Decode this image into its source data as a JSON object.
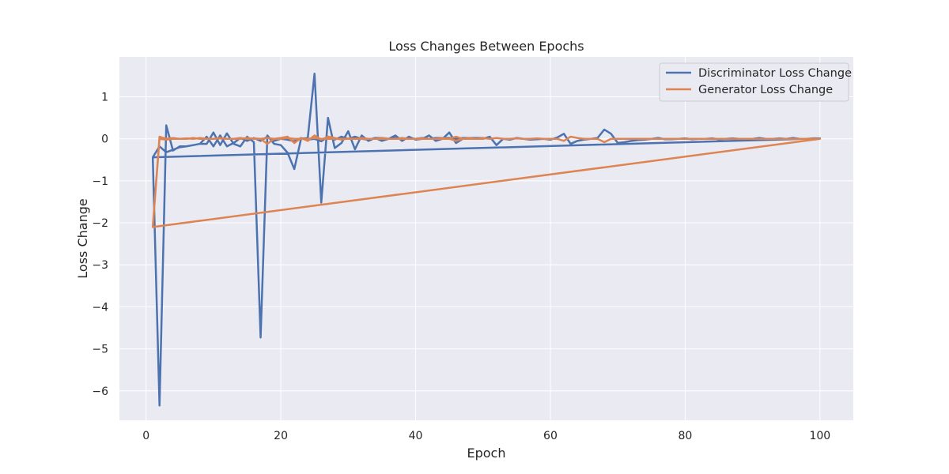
{
  "chart_data": {
    "type": "line",
    "title": "Loss Changes Between Epochs",
    "xlabel": "Epoch",
    "ylabel": "Loss Change",
    "xlim": [
      -3.95,
      104.95
    ],
    "ylim": [
      -6.7,
      1.95
    ],
    "xticks": [
      0,
      20,
      40,
      60,
      80,
      100
    ],
    "yticks": [
      -6,
      -5,
      -4,
      -3,
      -2,
      -1,
      0,
      1
    ],
    "grid": true,
    "legend": "top-right",
    "colors": {
      "background": "#eaeaf2",
      "grid": "#ffffff"
    },
    "series": [
      {
        "name": "Discriminator Loss Change",
        "color": "#4c72b0",
        "x": [
          1,
          2,
          3,
          4,
          5,
          6,
          7,
          8,
          9,
          10,
          11,
          12,
          13,
          14,
          15,
          16,
          17,
          18,
          19,
          20,
          21,
          22,
          23,
          24,
          25,
          26,
          27,
          28,
          29,
          30,
          31,
          32,
          33,
          34,
          35,
          36,
          37,
          38,
          39,
          40,
          41,
          42,
          43,
          44,
          45,
          46,
          47,
          48,
          49,
          50,
          51,
          52,
          53,
          54,
          55,
          56,
          57,
          58,
          59,
          60,
          61,
          62,
          63,
          64,
          65,
          66,
          67,
          68,
          69,
          70,
          71,
          72,
          73,
          74,
          75,
          76,
          77,
          78,
          79,
          80,
          81,
          82,
          83,
          84,
          85,
          86,
          87,
          88,
          89,
          90,
          91,
          92,
          93,
          94,
          95,
          96,
          97,
          98,
          99,
          100,
          1,
          2,
          3,
          4,
          5,
          6,
          7,
          8,
          9,
          10,
          11,
          12,
          13,
          14,
          15,
          16,
          17,
          18,
          19,
          20,
          21,
          22,
          23,
          24,
          25,
          26,
          27,
          28,
          29,
          30,
          31,
          32,
          33,
          34,
          35,
          36,
          37,
          38,
          39,
          40,
          41,
          42,
          43,
          44,
          45,
          46,
          47,
          48,
          49,
          50
        ],
        "y": [
          -0.44,
          -6.35,
          0.32,
          -0.28,
          -0.18,
          -0.18,
          -0.15,
          -0.12,
          -0.12,
          0.15,
          -0.15,
          0.13,
          -0.12,
          -0.18,
          0.05,
          -0.08,
          -4.73,
          0.08,
          -0.12,
          -0.15,
          -0.33,
          -0.72,
          0.0,
          0.02,
          1.55,
          -1.52,
          0.5,
          -0.22,
          -0.1,
          0.18,
          -0.25,
          0.08,
          -0.05,
          0.02,
          -0.05,
          0.0,
          0.08,
          -0.05,
          0.05,
          -0.02,
          0.0,
          0.08,
          -0.05,
          0.0,
          0.15,
          -0.1,
          0.0,
          0.0,
          0.02,
          0.0,
          0.05,
          -0.15,
          0.0,
          -0.02,
          0.02,
          0.0,
          -0.02,
          -0.01,
          0.0,
          -0.02,
          0.03,
          0.12,
          -0.12,
          -0.05,
          -0.02,
          0.0,
          0.02,
          0.22,
          0.12,
          -0.1,
          -0.08,
          -0.05,
          -0.03,
          -0.02,
          0.0,
          0.02,
          -0.01,
          -0.01,
          0.0,
          0.01,
          -0.01,
          0.0,
          0.0,
          0.01,
          -0.01,
          0.0,
          0.01,
          0.0,
          0.0,
          0.0,
          0.02,
          0.0,
          0.0,
          0.01,
          0.0,
          0.02,
          0.0,
          0.0,
          0.01,
          0.01,
          -0.44,
          -0.18,
          -0.32,
          -0.26,
          -0.2,
          -0.18,
          -0.15,
          -0.12,
          0.05,
          -0.18,
          0.08,
          -0.18,
          -0.1,
          0.02,
          -0.05,
          0.02,
          -0.05,
          0.05,
          -0.05,
          0.0,
          -0.02,
          -0.06,
          0.02,
          -0.02,
          0.0,
          -0.06,
          0.05,
          -0.02,
          0.05,
          0.0,
          0.05,
          0.0,
          -0.02,
          0.02,
          0.02,
          0.0,
          0.02,
          0.0,
          0.02,
          0.0,
          0.02,
          0.0,
          0.02,
          0.02,
          0.02,
          0.0,
          0.02,
          0.02,
          0.02,
          0.02
        ]
      },
      {
        "name": "Generator Loss Change",
        "color": "#dd8452",
        "x": [
          1,
          2,
          3,
          4,
          5,
          6,
          7,
          8,
          9,
          10,
          11,
          12,
          13,
          14,
          15,
          16,
          17,
          18,
          19,
          20,
          21,
          22,
          23,
          24,
          25,
          26,
          27,
          28,
          29,
          30,
          31,
          32,
          33,
          34,
          35,
          36,
          37,
          38,
          39,
          40,
          41,
          42,
          43,
          44,
          45,
          46,
          47,
          48,
          49,
          50,
          51,
          52,
          53,
          54,
          55,
          56,
          57,
          58,
          59,
          60,
          61,
          62,
          63,
          64,
          65,
          66,
          67,
          68,
          69,
          70,
          71,
          72,
          73,
          74,
          75,
          76,
          77,
          78,
          79,
          80,
          81,
          82,
          83,
          84,
          85,
          86,
          87,
          88,
          89,
          90,
          91,
          92,
          93,
          94,
          95,
          96,
          97,
          98,
          99,
          100,
          1,
          2,
          3,
          4,
          5,
          6,
          7,
          8,
          9,
          10,
          11,
          12,
          13,
          14,
          15,
          16,
          17,
          18,
          19,
          20,
          21,
          22,
          23,
          24,
          25,
          26,
          27,
          28,
          29,
          30,
          31,
          32,
          33,
          34,
          35,
          36,
          37,
          38,
          39,
          40,
          41,
          42,
          43,
          44,
          45,
          46,
          47,
          48,
          49,
          50
        ],
        "y": [
          -2.1,
          0.05,
          0.0,
          0.02,
          0.0,
          0.01,
          0.0,
          0.02,
          0.0,
          0.0,
          0.01,
          0.0,
          0.0,
          0.02,
          0.0,
          0.01,
          0.0,
          -0.12,
          0.0,
          0.02,
          0.05,
          -0.1,
          0.02,
          -0.05,
          0.08,
          -0.02,
          0.05,
          0.02,
          -0.02,
          0.01,
          0.0,
          0.02,
          0.0,
          0.0,
          0.02,
          0.0,
          0.0,
          0.02,
          0.0,
          0.0,
          0.01,
          0.0,
          0.0,
          0.02,
          0.0,
          0.05,
          0.0,
          0.02,
          0.0,
          0.02,
          0.0,
          0.02,
          0.0,
          0.0,
          0.01,
          0.0,
          0.0,
          0.01,
          0.0,
          0.0,
          0.0,
          -0.05,
          0.05,
          0.02,
          0.0,
          0.0,
          0.0,
          -0.08,
          0.0,
          0.0,
          0.0,
          0.0,
          0.0,
          0.0,
          0.0,
          0.0,
          0.0,
          0.0,
          0.0,
          0.0,
          0.0,
          0.0,
          0.0,
          0.0,
          0.0,
          0.0,
          0.0,
          0.0,
          0.0,
          0.0,
          0.0,
          0.0,
          0.0,
          0.0,
          0.0,
          0.0,
          0.0,
          0.0,
          0.0,
          0.0,
          -2.1,
          0.0,
          -0.02,
          0.0,
          0.0,
          0.0,
          0.02,
          0.0,
          0.0,
          0.0,
          0.02,
          0.0,
          0.0,
          0.0,
          0.02,
          0.0,
          0.0,
          0.02,
          0.0,
          0.0,
          0.02,
          0.0,
          0.0,
          0.0,
          0.02,
          0.0,
          0.0,
          0.0,
          0.0,
          0.0,
          0.0,
          0.0,
          0.0,
          0.0,
          0.0,
          0.0,
          0.0,
          0.0,
          0.0,
          0.0,
          0.0,
          0.0,
          0.0,
          0.0,
          0.0,
          -0.05,
          0.0,
          0.0,
          0.0,
          0.0
        ]
      }
    ]
  }
}
